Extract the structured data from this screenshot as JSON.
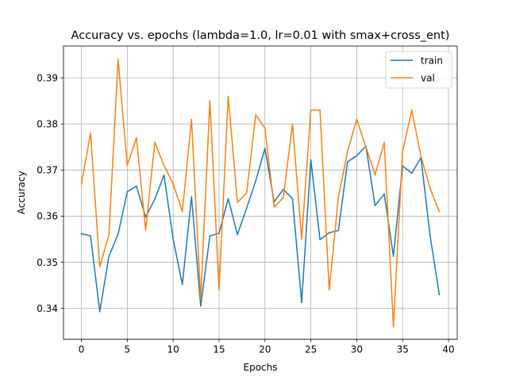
{
  "chart_data": {
    "type": "line",
    "title": "Accuracy vs. epochs (lambda=1.0, lr=0.01 with smax+cross_ent)",
    "xlabel": "Epochs",
    "ylabel": "Accuracy",
    "xlim": [
      -1.95,
      40.95
    ],
    "ylim": [
      0.3333,
      0.3969
    ],
    "xticks": [
      0,
      5,
      10,
      15,
      20,
      25,
      30,
      35,
      40
    ],
    "yticks": [
      0.34,
      0.35,
      0.36,
      0.37,
      0.38,
      0.39
    ],
    "xtick_labels": [
      "0",
      "5",
      "10",
      "15",
      "20",
      "25",
      "30",
      "35",
      "40"
    ],
    "ytick_labels": [
      "0.34",
      "0.35",
      "0.36",
      "0.37",
      "0.38",
      "0.39"
    ],
    "grid": true,
    "legend_position": "top-right",
    "x": [
      0,
      1,
      2,
      3,
      4,
      5,
      6,
      7,
      8,
      9,
      10,
      11,
      12,
      13,
      14,
      15,
      16,
      17,
      18,
      19,
      20,
      21,
      22,
      23,
      24,
      25,
      26,
      27,
      28,
      29,
      30,
      31,
      32,
      33,
      34,
      35,
      36,
      37,
      38,
      39
    ],
    "series": [
      {
        "name": "train",
        "color": "#1f77b4",
        "values": [
          0.3562,
          0.3557,
          0.3393,
          0.3513,
          0.3561,
          0.3653,
          0.3665,
          0.3598,
          0.3637,
          0.3689,
          0.355,
          0.3452,
          0.3642,
          0.3405,
          0.3557,
          0.3563,
          0.3638,
          0.356,
          0.3617,
          0.3677,
          0.3747,
          0.3631,
          0.3658,
          0.3638,
          0.3413,
          0.3722,
          0.3549,
          0.3564,
          0.3569,
          0.3718,
          0.3731,
          0.3752,
          0.3623,
          0.3648,
          0.3513,
          0.3709,
          0.3693,
          0.3727,
          0.3557,
          0.343
        ]
      },
      {
        "name": "val",
        "color": "#ff7f0e",
        "values": [
          0.367,
          0.378,
          0.349,
          0.356,
          0.394,
          0.371,
          0.377,
          0.357,
          0.376,
          0.371,
          0.367,
          0.361,
          0.381,
          0.342,
          0.385,
          0.344,
          0.386,
          0.363,
          0.365,
          0.382,
          0.379,
          0.362,
          0.364,
          0.38,
          0.355,
          0.383,
          0.383,
          0.344,
          0.364,
          0.374,
          0.381,
          0.375,
          0.369,
          0.376,
          0.336,
          0.374,
          0.383,
          0.373,
          0.366,
          0.361
        ]
      }
    ]
  }
}
